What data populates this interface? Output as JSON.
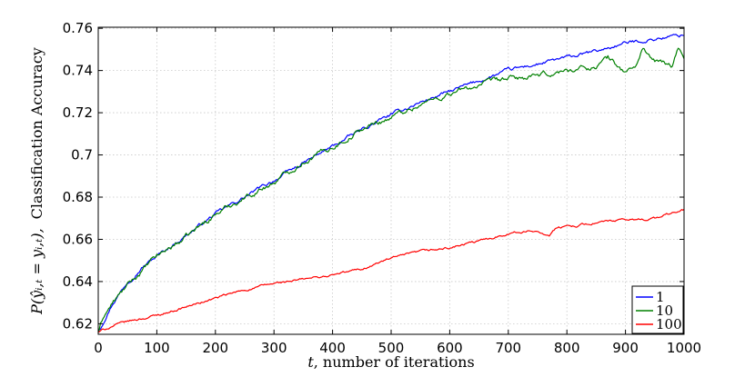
{
  "chart_data": {
    "type": "line",
    "xlabel": "t, number of iterations",
    "ylabel": "P(ŷ_{i,t} = y_{i,t}), Classification Accuracy",
    "xlabel_italic": "t",
    "xlabel_rest": ", number of iterations",
    "ylabel_math": "P(ŷᵢ,ₜ = yᵢ,ₜ),",
    "ylabel_rest": "Classification Accuracy",
    "xlim": [
      0,
      1000
    ],
    "ylim": [
      0.615,
      0.7605
    ],
    "xticks": [
      0,
      100,
      200,
      300,
      400,
      500,
      600,
      700,
      800,
      900,
      1000
    ],
    "xtick_labels": [
      "0",
      "100",
      "200",
      "300",
      "400",
      "500",
      "600",
      "700",
      "800",
      "900",
      "1000"
    ],
    "yticks": [
      0.62,
      0.64,
      0.66,
      0.68,
      0.7,
      0.72,
      0.74,
      0.76
    ],
    "ytick_labels": [
      "0.62",
      "0.64",
      "0.66",
      "0.68",
      "0.7",
      "0.72",
      "0.74",
      "0.76"
    ],
    "grid": true,
    "legend_position": "bottom-right",
    "series": [
      {
        "name": "1",
        "color": "#0000ff",
        "x": [
          0,
          10,
          25,
          50,
          75,
          100,
          150,
          200,
          250,
          300,
          350,
          400,
          450,
          500,
          550,
          600,
          650,
          700,
          750,
          800,
          850,
          900,
          950,
          1000
        ],
        "y": [
          0.616,
          0.622,
          0.63,
          0.64,
          0.647,
          0.652,
          0.662,
          0.672,
          0.68,
          0.688,
          0.696,
          0.704,
          0.712,
          0.719,
          0.725,
          0.73,
          0.735,
          0.74,
          0.743,
          0.746,
          0.749,
          0.753,
          0.755,
          0.757
        ]
      },
      {
        "name": "10",
        "color": "#008000",
        "x": [
          0,
          10,
          25,
          50,
          75,
          100,
          150,
          200,
          250,
          300,
          350,
          400,
          450,
          500,
          550,
          600,
          650,
          700,
          750,
          800,
          850,
          870,
          900,
          920,
          930,
          950,
          980,
          990,
          1000
        ],
        "y": [
          0.616,
          0.624,
          0.63,
          0.638,
          0.645,
          0.652,
          0.661,
          0.672,
          0.68,
          0.687,
          0.697,
          0.704,
          0.712,
          0.718,
          0.724,
          0.729,
          0.733,
          0.736,
          0.737,
          0.74,
          0.742,
          0.746,
          0.739,
          0.743,
          0.751,
          0.744,
          0.742,
          0.75,
          0.747
        ]
      },
      {
        "name": "100",
        "color": "#ff0000",
        "x": [
          0,
          25,
          50,
          100,
          150,
          200,
          250,
          300,
          350,
          400,
          450,
          500,
          550,
          600,
          650,
          700,
          750,
          770,
          780,
          800,
          850,
          900,
          950,
          1000
        ],
        "y": [
          0.616,
          0.619,
          0.621,
          0.624,
          0.628,
          0.632,
          0.636,
          0.639,
          0.641,
          0.643,
          0.646,
          0.651,
          0.654,
          0.656,
          0.659,
          0.663,
          0.664,
          0.662,
          0.665,
          0.666,
          0.668,
          0.669,
          0.67,
          0.674
        ]
      }
    ]
  }
}
